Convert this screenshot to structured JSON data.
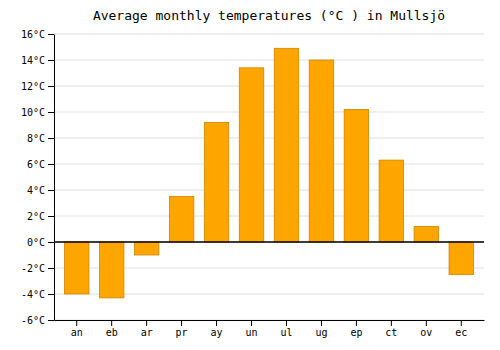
{
  "chart_data": {
    "type": "bar",
    "title": "Average monthly temperatures (°C ) in Mullsjö",
    "categories": [
      "an",
      "eb",
      "ar",
      "pr",
      "ay",
      "un",
      "ul",
      "ug",
      "ep",
      "ct",
      "ov",
      "ec"
    ],
    "values": [
      -4.0,
      -4.3,
      -1.0,
      3.5,
      9.2,
      13.4,
      14.9,
      14.0,
      10.2,
      6.3,
      1.2,
      -2.5
    ],
    "color": "#FFA500",
    "ylim": [
      -6,
      16
    ],
    "yticks": [
      {
        "value": -6,
        "label": "-6°C"
      },
      {
        "value": -4,
        "label": "-4°C"
      },
      {
        "value": -2,
        "label": "-2°C"
      },
      {
        "value": 0,
        "label": "0°C"
      },
      {
        "value": 2,
        "label": "2°C"
      },
      {
        "value": 4,
        "label": "4°C"
      },
      {
        "value": 6,
        "label": "6°C"
      },
      {
        "value": 8,
        "label": "8°C"
      },
      {
        "value": 10,
        "label": "10°C"
      },
      {
        "value": 12,
        "label": "12°C"
      },
      {
        "value": 14,
        "label": "14°C"
      },
      {
        "value": 16,
        "label": "16°C"
      }
    ],
    "grid": true
  }
}
